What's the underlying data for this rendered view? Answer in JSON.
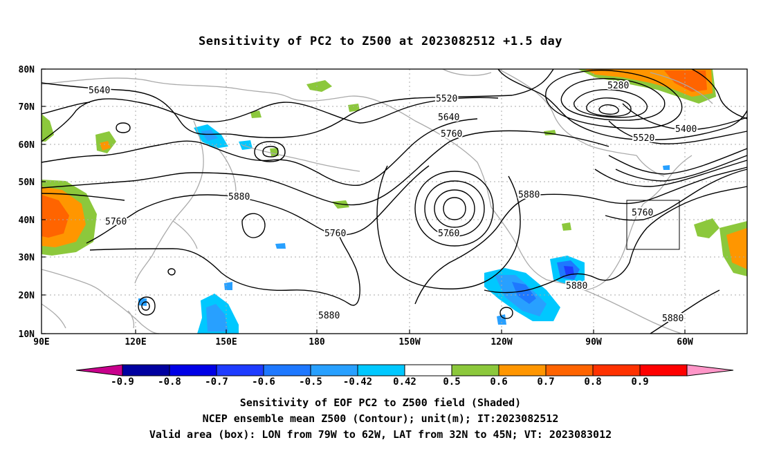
{
  "title": "Sensitivity of PC2 to Z500 at 2023082512 +1.5 day",
  "axes": {
    "lat_labels": [
      "80N",
      "70N",
      "60N",
      "50N",
      "40N",
      "30N",
      "20N",
      "10N"
    ],
    "lon_labels": [
      "90E",
      "120E",
      "150E",
      "180",
      "150W",
      "120W",
      "90W",
      "60W"
    ]
  },
  "colorbar": {
    "labels": [
      "-0.9",
      "-0.8",
      "-0.7",
      "-0.6",
      "-0.5",
      "-0.42",
      "0.42",
      "0.5",
      "0.6",
      "0.7",
      "0.8",
      "0.9"
    ],
    "colors": [
      "#c8008c",
      "#0000a0",
      "#0000e6",
      "#1e3cff",
      "#1e78ff",
      "#28a0ff",
      "#00c8ff",
      "#ffffff",
      "#8cc83c",
      "#ff9600",
      "#ff6400",
      "#ff3200",
      "#ff0000",
      "#ff96c8"
    ]
  },
  "contour_labels": [
    {
      "id": "c5640-west",
      "text": "5640"
    },
    {
      "id": "c5520-mid",
      "text": "5520"
    },
    {
      "id": "c5640-mid",
      "text": "5640"
    },
    {
      "id": "c5760-mid",
      "text": "5760"
    },
    {
      "id": "c5280-arctic",
      "text": "5280"
    },
    {
      "id": "c5400-east",
      "text": "5400"
    },
    {
      "id": "c5520-east",
      "text": "5520"
    },
    {
      "id": "c5880-pacific",
      "text": "5880"
    },
    {
      "id": "c5760-asia",
      "text": "5760"
    },
    {
      "id": "c5760-trough",
      "text": "5760"
    },
    {
      "id": "c5760-low",
      "text": "5760"
    },
    {
      "id": "c5880-na",
      "text": "5880"
    },
    {
      "id": "c5760-box",
      "text": "5760"
    },
    {
      "id": "c5880-gulf",
      "text": "5880"
    },
    {
      "id": "c5880-south",
      "text": "5880"
    },
    {
      "id": "c5880-atl",
      "text": "5880"
    }
  ],
  "captions": {
    "line1": "Sensitivity of EOF PC2 to Z500 field (Shaded)",
    "line2": "NCEP ensemble mean Z500 (Contour); unit(m); IT:2023082512",
    "line3": "Valid area (box): LON from 79W to 62W, LAT from 32N to 45N; VT: 2023083012"
  }
}
